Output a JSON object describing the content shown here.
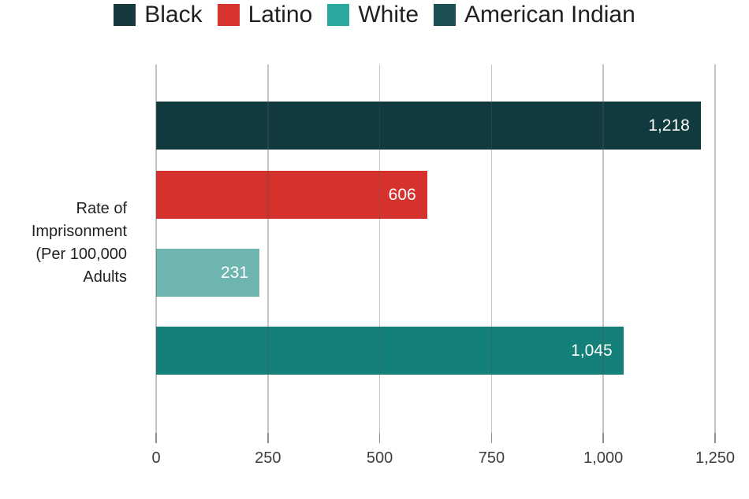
{
  "figure": {
    "background": "#ffffff"
  },
  "legend": {
    "items": [
      {
        "label": "Black",
        "color": "#16393d"
      },
      {
        "label": "Latino",
        "color": "#d8342f"
      },
      {
        "label": "White",
        "color": "#2aa89e"
      },
      {
        "label": "American Indian",
        "color": "#1c5054"
      }
    ]
  },
  "y_axis": {
    "label_lines": [
      "Rate of",
      "Imprisonment",
      "(Per 100,000",
      "Adults"
    ]
  },
  "chart_data": {
    "type": "bar",
    "orientation": "horizontal",
    "title": "",
    "categories": [
      "Black",
      "Latino",
      "White",
      "American Indian"
    ],
    "values": [
      1218,
      606,
      231,
      1045
    ],
    "value_labels": [
      "1,218",
      "606",
      "231",
      "1,045"
    ],
    "bar_colors": [
      "#113a3e",
      "#d5322e",
      "#6db5ae",
      "#13807a"
    ],
    "xlabel": "",
    "ylabel": "Rate of Imprisonment (Per 100,000 Adults",
    "xlim": [
      0,
      1250
    ],
    "x_ticks": [
      0,
      250,
      500,
      750,
      1000,
      1250
    ],
    "x_tick_labels": [
      "0",
      "250",
      "500",
      "750",
      "1,000",
      "1,250"
    ],
    "grid": "vertical",
    "legend_position": "top"
  }
}
